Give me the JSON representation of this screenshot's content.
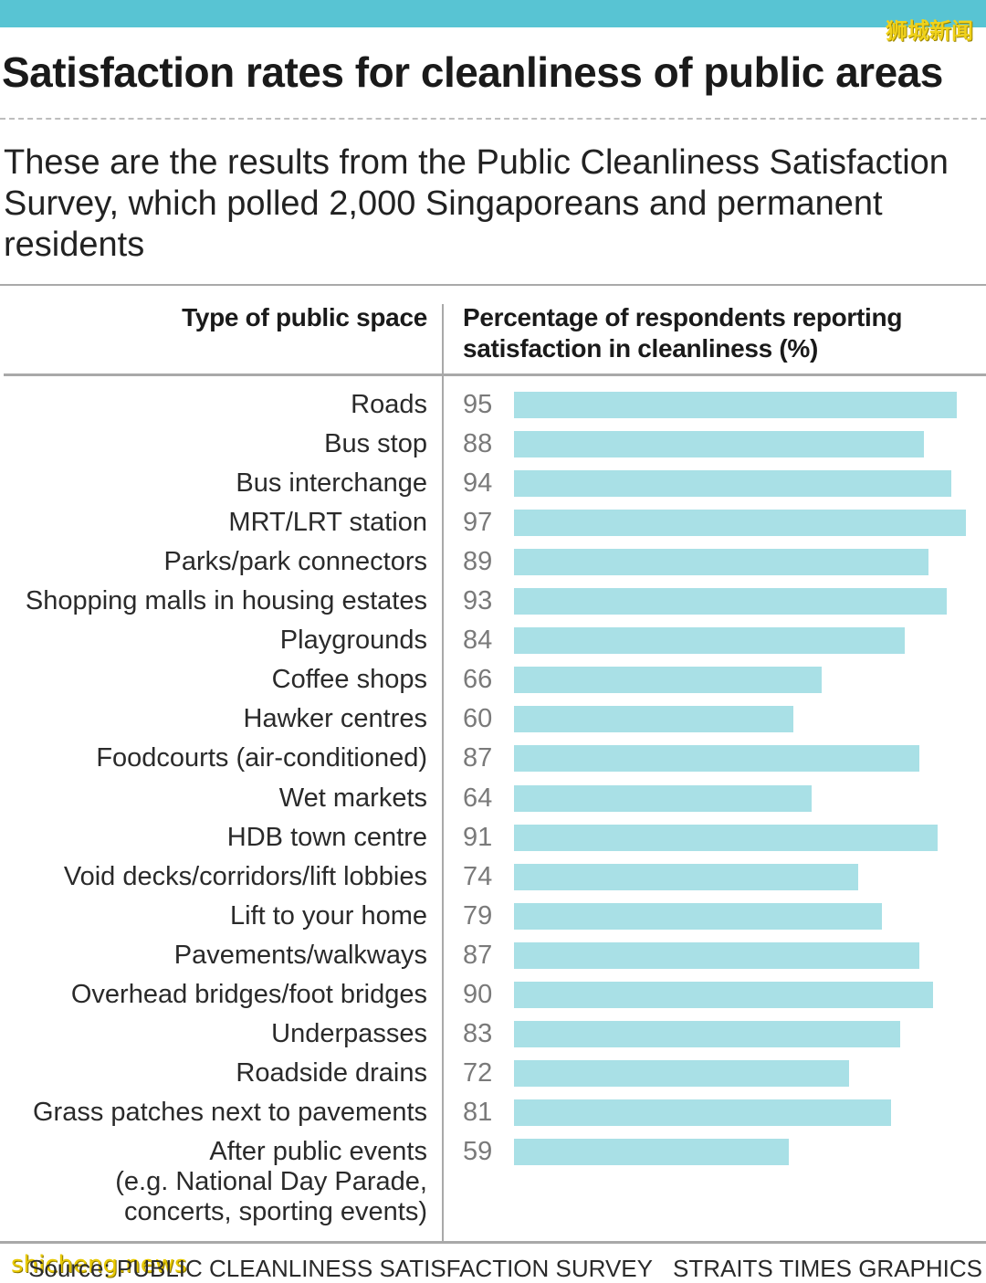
{
  "header": {
    "watermark": "狮城新闻",
    "title": "Satisfaction rates for cleanliness of public areas",
    "subtitle": "These are the results from the Public Cleanliness Satisfaction Survey, which polled 2,000 Singaporeans and permanent residents"
  },
  "table": {
    "col_left": "Type of public space",
    "col_right": "Percentage of respondents reporting satisfaction in cleanliness (%)"
  },
  "colors": {
    "accent": "#58c4d3",
    "bar": "#a9e0e6",
    "value_text": "#7a7a7a"
  },
  "chart_data": {
    "type": "bar",
    "orientation": "horizontal",
    "title": "Satisfaction rates for cleanliness of public areas",
    "xlabel": "Percentage of respondents reporting satisfaction in cleanliness (%)",
    "ylabel": "Type of public space",
    "xlim": [
      0,
      100
    ],
    "categories": [
      "Roads",
      "Bus stop",
      "Bus interchange",
      "MRT/LRT station",
      "Parks/park connectors",
      "Shopping malls in housing estates",
      "Playgrounds",
      "Coffee shops",
      "Hawker centres",
      "Foodcourts (air-conditioned)",
      "Wet markets",
      "HDB town centre",
      "Void decks/corridors/lift lobbies",
      "Lift to your home",
      "Pavements/walkways",
      "Overhead bridges/foot bridges",
      "Underpasses",
      "Roadside drains",
      "Grass patches next to pavements",
      "After public events\n(e.g. National Day Parade,\nconcerts, sporting events)"
    ],
    "values": [
      95,
      88,
      94,
      97,
      89,
      93,
      84,
      66,
      60,
      87,
      64,
      91,
      74,
      79,
      87,
      90,
      83,
      72,
      81,
      59
    ],
    "grid": false,
    "legend": "none"
  },
  "footer": {
    "source": "Source: PUBLIC CLEANLINESS SATISFACTION SURVEY",
    "credit": "STRAITS TIMES GRAPHICS",
    "watermark": "shicheng.news"
  }
}
